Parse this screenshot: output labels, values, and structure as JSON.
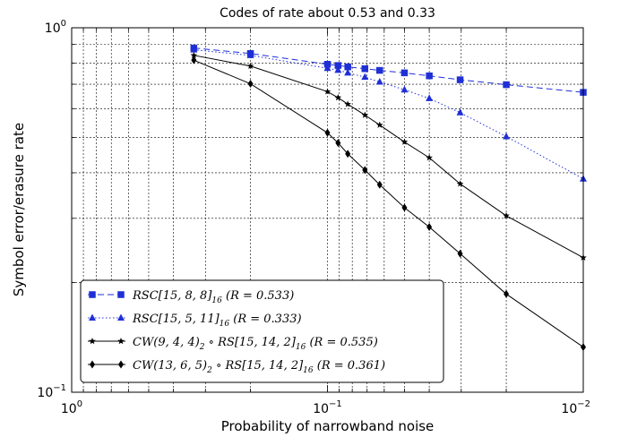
{
  "chart_data": {
    "type": "line",
    "title": "Codes of rate about 0.53 and 0.33",
    "xlabel": "Probability of narrowband noise",
    "ylabel": "Symbol error/erasure rate",
    "xscale": "log",
    "yscale": "log",
    "x_reversed": true,
    "xlim": [
      1,
      0.01
    ],
    "ylim": [
      0.1,
      1
    ],
    "x_major_ticks": [
      {
        "value": 1,
        "label": "10^0"
      },
      {
        "value": 0.1,
        "label": "10^-1"
      },
      {
        "value": 0.01,
        "label": "10^-2"
      }
    ],
    "y_major_ticks": [
      {
        "value": 0.1,
        "label": "10^-1"
      },
      {
        "value": 1,
        "label": "10^0"
      }
    ],
    "grid": true,
    "legend_position": "lower-left",
    "series": [
      {
        "name": "RSC[15,8,8]16 (R = 0.533)",
        "legend": {
          "main": "RSC[15, 8, 8]",
          "sub": "16",
          "rest": " (R = 0.533)"
        },
        "color": "#1f2fd6",
        "linestyle": "dashed",
        "marker": "square",
        "x": [
          0.333,
          0.2,
          0.1,
          0.0909,
          0.0833,
          0.0714,
          0.0625,
          0.05,
          0.04,
          0.0303,
          0.02,
          0.01
        ],
        "y": [
          0.88,
          0.85,
          0.794,
          0.788,
          0.781,
          0.772,
          0.764,
          0.752,
          0.738,
          0.72,
          0.698,
          0.665
        ]
      },
      {
        "name": "RSC[15,5,11]16 (R = 0.333)",
        "legend": {
          "main": "RSC[15, 5, 11]",
          "sub": "16",
          "rest": " (R = 0.333)"
        },
        "color": "#1f2fd6",
        "linestyle": "dotted",
        "marker": "triangle",
        "x": [
          0.333,
          0.2,
          0.1,
          0.0909,
          0.0833,
          0.0714,
          0.0625,
          0.05,
          0.04,
          0.0303,
          0.02,
          0.01
        ],
        "y": [
          0.87,
          0.84,
          0.774,
          0.765,
          0.752,
          0.732,
          0.71,
          0.676,
          0.64,
          0.585,
          0.503,
          0.385
        ]
      },
      {
        "name": "CW(9,4,4)2 ∘ RS[15,14,2]16 (R = 0.535)",
        "legend": {
          "main": "CW(9, 4, 4)",
          "sub": "2",
          "mid": " ∘ RS[15, 14, 2]",
          "sub2": "16",
          "rest": " (R = 0.535)"
        },
        "color": "#000000",
        "linestyle": "solid",
        "marker": "star",
        "x": [
          0.333,
          0.2,
          0.1,
          0.0909,
          0.0833,
          0.0714,
          0.0625,
          0.05,
          0.04,
          0.0303,
          0.02,
          0.01
        ],
        "y": [
          0.84,
          0.785,
          0.668,
          0.643,
          0.617,
          0.576,
          0.541,
          0.486,
          0.44,
          0.373,
          0.305,
          0.234
        ]
      },
      {
        "name": "CW(13,6,5)2 ∘ RS[15,14,2]16 (R = 0.361)",
        "legend": {
          "main": "CW(13, 6, 5)",
          "sub": "2",
          "mid": " ∘ RS[15, 14, 2]",
          "sub2": "16",
          "rest": " (R = 0.361)"
        },
        "color": "#000000",
        "linestyle": "solid",
        "marker": "diamond",
        "x": [
          0.333,
          0.2,
          0.1,
          0.0909,
          0.0833,
          0.0714,
          0.0625,
          0.05,
          0.04,
          0.0303,
          0.02,
          0.01
        ],
        "y": [
          0.815,
          0.702,
          0.515,
          0.483,
          0.451,
          0.407,
          0.371,
          0.321,
          0.284,
          0.24,
          0.186,
          0.133
        ]
      }
    ]
  }
}
